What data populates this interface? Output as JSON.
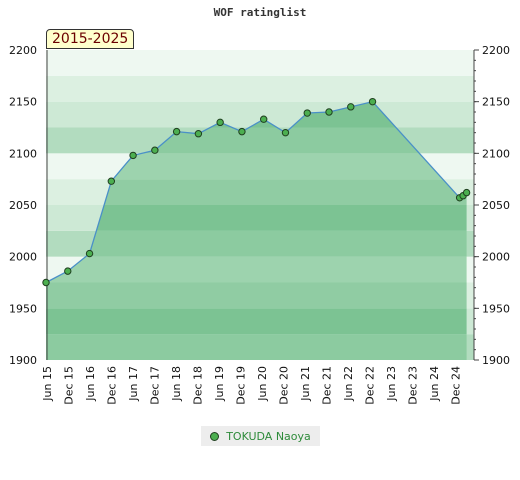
{
  "chart_data": {
    "type": "area",
    "title": "WOF ratinglist",
    "period_label": "2015-2025",
    "ylim": [
      1900,
      2200
    ],
    "y_ticks": [
      "1900",
      "1950",
      "2000",
      "2050",
      "2100",
      "2150",
      "2200"
    ],
    "x_ticks": [
      "Jun 15",
      "Dec 15",
      "Jun 16",
      "Dec 16",
      "Jun 17",
      "Dec 17",
      "Jun 18",
      "Dec 18",
      "Jun 19",
      "Dec 19",
      "Jun 20",
      "Dec 20",
      "Jun 21",
      "Dec 21",
      "Jun 22",
      "Dec 22",
      "Jun 23",
      "Dec 23",
      "Jun 24",
      "Dec 24"
    ],
    "x_range": [
      2015.42,
      2025.25
    ],
    "grid": true,
    "legend_position": "bottom-center",
    "series": [
      {
        "name": "TOKUDA Naoya",
        "color": "#4caf50",
        "line_color": "#4a90c8",
        "x": [
          2015.42,
          2015.92,
          2016.42,
          2016.92,
          2017.42,
          2017.92,
          2018.42,
          2018.92,
          2019.42,
          2019.92,
          2020.42,
          2020.92,
          2021.42,
          2021.92,
          2022.42,
          2022.92,
          2024.92,
          2025.0,
          2025.08
        ],
        "values": [
          1975,
          1986,
          2003,
          2073,
          2098,
          2103,
          2121,
          2119,
          2130,
          2121,
          2133,
          2120,
          2139,
          2140,
          2145,
          2150,
          2057,
          2059,
          2062
        ]
      }
    ]
  }
}
